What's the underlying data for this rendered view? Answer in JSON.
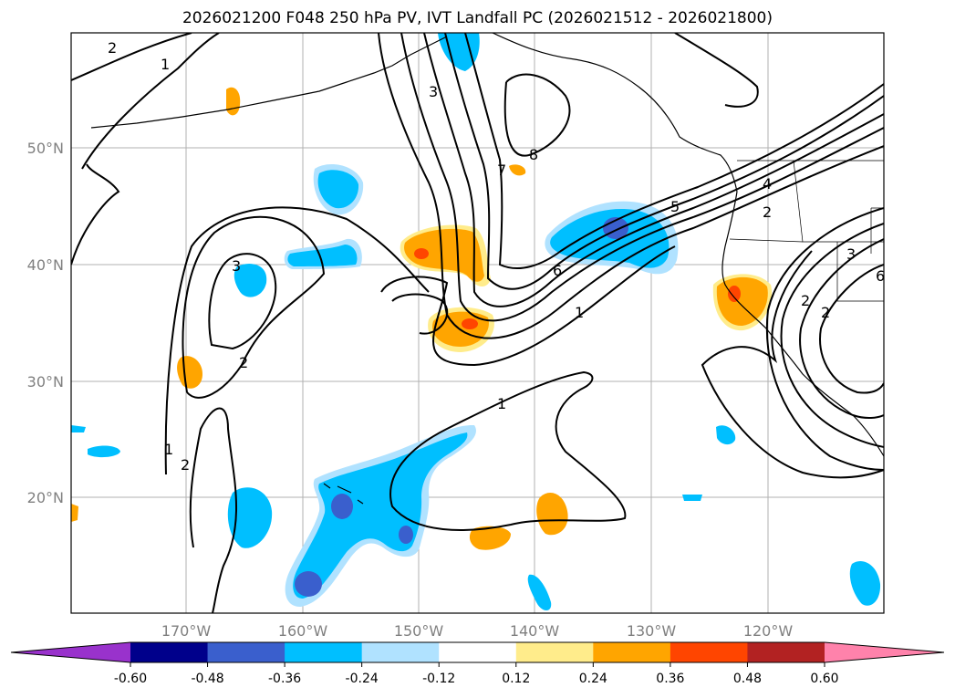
{
  "title": "2026021200 F048 250 hPa PV, IVT Landfall PC (2026021512 - 2026021800)",
  "map": {
    "lon_labels": [
      "170°W",
      "160°W",
      "150°W",
      "140°W",
      "130°W",
      "120°W"
    ],
    "lat_labels": [
      "50°N",
      "40°N",
      "30°N",
      "20°N"
    ],
    "gridlines": true
  },
  "colorbar": {
    "ticks": [
      "-0.60",
      "-0.48",
      "-0.36",
      "-0.24",
      "-0.12",
      "0.12",
      "0.24",
      "0.36",
      "0.48",
      "0.60"
    ],
    "colors": [
      "#9932cc",
      "#00008b",
      "#3a5fcd",
      "#00bfff",
      "#b0e2ff",
      "#ffffff",
      "#ffec8b",
      "#ffa500",
      "#ff4500",
      "#b22222",
      "#ff82ab"
    ],
    "extend": "both"
  },
  "pv_contour_labels": [
    "2",
    "1",
    "3",
    "8",
    "7",
    "5",
    "4",
    "2",
    "6",
    "1",
    "3",
    "2",
    "1",
    "2",
    "1",
    "2",
    "3",
    "2",
    "6"
  ]
}
